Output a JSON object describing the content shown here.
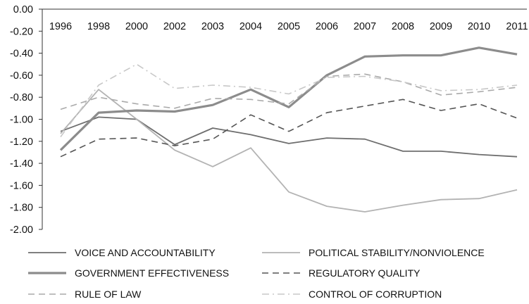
{
  "chart_data": {
    "type": "line",
    "title": "",
    "xlabel": "",
    "ylabel": "",
    "categories": [
      "1996",
      "1998",
      "2000",
      "2002",
      "2003",
      "2004",
      "2005",
      "2006",
      "2007",
      "2008",
      "2009",
      "2010",
      "2011"
    ],
    "ylim": [
      -2.0,
      0.0
    ],
    "yticks": [
      "0.00",
      "-0.20",
      "-0.40",
      "-0.60",
      "-0.80",
      "-1.00",
      "-1.20",
      "-1.40",
      "-1.60",
      "-1.80",
      "-2.00"
    ],
    "grid": false,
    "legend_position": "bottom",
    "series": [
      {
        "name": "VOICE AND ACCOUNTABILITY",
        "color": "#6e6e6e",
        "style": "solid",
        "width": 1.8,
        "values": [
          -1.11,
          -0.98,
          -1.0,
          -1.23,
          -1.08,
          -1.14,
          -1.22,
          -1.17,
          -1.18,
          -1.29,
          -1.29,
          -1.32,
          -1.34
        ]
      },
      {
        "name": "POLITICAL STABILITY/NONVIOLENCE",
        "color": "#b3b3b3",
        "style": "solid",
        "width": 1.8,
        "values": [
          -1.13,
          -0.73,
          -1.0,
          -1.28,
          -1.43,
          -1.26,
          -1.66,
          -1.79,
          -1.84,
          -1.78,
          -1.73,
          -1.72,
          -1.64
        ]
      },
      {
        "name": "GOVERNMENT EFFECTIVENESS",
        "color": "#8c8c8c",
        "style": "solid",
        "width": 3.2,
        "values": [
          -1.28,
          -0.94,
          -0.92,
          -0.93,
          -0.87,
          -0.73,
          -0.89,
          -0.6,
          -0.43,
          -0.42,
          -0.42,
          -0.35,
          -0.41
        ]
      },
      {
        "name": "REGULATORY QUALITY",
        "color": "#555555",
        "style": "dash",
        "width": 1.6,
        "values": [
          -1.34,
          -1.18,
          -1.17,
          -1.24,
          -1.18,
          -0.96,
          -1.11,
          -0.94,
          -0.88,
          -0.82,
          -0.92,
          -0.86,
          -0.99
        ]
      },
      {
        "name": "RULE OF LAW",
        "color": "#aaaaaa",
        "style": "dash",
        "width": 1.6,
        "values": [
          -0.91,
          -0.8,
          -0.86,
          -0.9,
          -0.81,
          -0.82,
          -0.86,
          -0.61,
          -0.59,
          -0.66,
          -0.78,
          -0.75,
          -0.71
        ]
      },
      {
        "name": "CONTROL OF CORRUPTION",
        "color": "#c8c8c8",
        "style": "dashdot",
        "width": 1.6,
        "values": [
          -1.16,
          -0.69,
          -0.5,
          -0.72,
          -0.69,
          -0.71,
          -0.77,
          -0.62,
          -0.61,
          -0.66,
          -0.74,
          -0.73,
          -0.69
        ]
      }
    ]
  }
}
